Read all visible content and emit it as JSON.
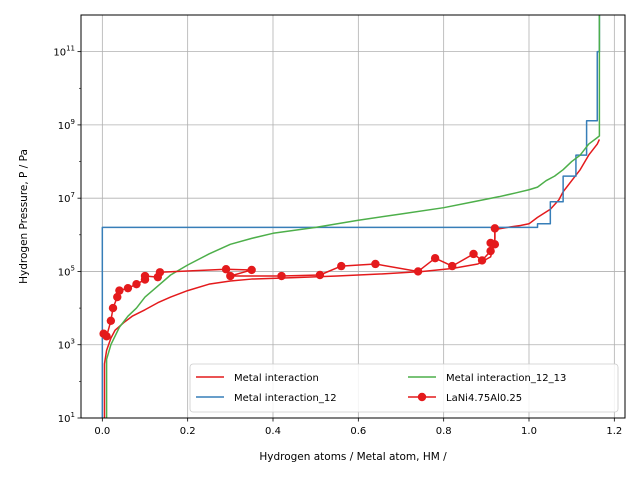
{
  "chart_data": {
    "type": "line",
    "title": "",
    "xlabel": "Hydrogen atoms / Metal atom, HM /",
    "ylabel": "Hydrogen Pressure, P / Pa",
    "y_scale": "log",
    "xlim": [
      -0.05,
      1.225
    ],
    "ylim": [
      10,
      1000000000000.0
    ],
    "grid": true,
    "legend_position": "lower-right",
    "x_ticks": [
      {
        "value": 0.0,
        "label": "0.0"
      },
      {
        "value": 0.2,
        "label": "0.2"
      },
      {
        "value": 0.4,
        "label": "0.4"
      },
      {
        "value": 0.6,
        "label": "0.6"
      },
      {
        "value": 0.8,
        "label": "0.8"
      },
      {
        "value": 1.0,
        "label": "1.0"
      },
      {
        "value": 1.2,
        "label": "1.2"
      }
    ],
    "y_ticks": [
      {
        "value": 10,
        "base": "10",
        "exp": "1"
      },
      {
        "value": 1000,
        "base": "10",
        "exp": "3"
      },
      {
        "value": 100000,
        "base": "10",
        "exp": "5"
      },
      {
        "value": 10000000,
        "base": "10",
        "exp": "7"
      },
      {
        "value": 1000000000,
        "base": "10",
        "exp": "9"
      },
      {
        "value": 100000000000,
        "base": "10",
        "exp": "11"
      }
    ],
    "series": [
      {
        "name": "Metal interaction",
        "color": "#e41a1c",
        "marker": false,
        "points": [
          [
            0.005,
            10
          ],
          [
            0.005,
            300
          ],
          [
            0.01,
            700
          ],
          [
            0.02,
            1500
          ],
          [
            0.03,
            2500
          ],
          [
            0.05,
            4000
          ],
          [
            0.07,
            6000
          ],
          [
            0.1,
            9000
          ],
          [
            0.13,
            14000
          ],
          [
            0.16,
            20000
          ],
          [
            0.2,
            30000
          ],
          [
            0.25,
            45000
          ],
          [
            0.3,
            55000
          ],
          [
            0.35,
            62000
          ],
          [
            0.45,
            68000
          ],
          [
            0.55,
            75000
          ],
          [
            0.65,
            85000
          ],
          [
            0.75,
            100000
          ],
          [
            0.82,
            120000
          ],
          [
            0.88,
            160000
          ],
          [
            0.91,
            250000
          ],
          [
            0.915,
            400000
          ],
          [
            0.92,
            800000
          ],
          [
            0.92,
            1400000
          ],
          [
            0.95,
            1600000
          ],
          [
            0.98,
            1800000
          ],
          [
            1.0,
            2000000
          ],
          [
            1.02,
            3000000
          ],
          [
            1.05,
            5000000
          ],
          [
            1.07,
            9000000
          ],
          [
            1.08,
            15000000
          ],
          [
            1.1,
            30000000
          ],
          [
            1.12,
            60000000
          ],
          [
            1.14,
            150000000
          ],
          [
            1.16,
            300000000
          ],
          [
            1.165,
            400000000
          ]
        ]
      },
      {
        "name": "Metal interaction_12",
        "color": "#377eb8",
        "marker": false,
        "points": [
          [
            0.0,
            10
          ],
          [
            0.0,
            1600000
          ],
          [
            1.02,
            1600000
          ],
          [
            1.02,
            2000000
          ],
          [
            1.05,
            2000000
          ],
          [
            1.05,
            8000000
          ],
          [
            1.08,
            8000000
          ],
          [
            1.08,
            40000000
          ],
          [
            1.11,
            40000000
          ],
          [
            1.11,
            150000000
          ],
          [
            1.135,
            150000000
          ],
          [
            1.135,
            1300000000
          ],
          [
            1.16,
            1300000000
          ],
          [
            1.16,
            100000000000
          ],
          [
            1.165,
            100000000000
          ],
          [
            1.165,
            1000000000000
          ]
        ]
      },
      {
        "name": "Metal interaction_12_13",
        "color": "#4daf4a",
        "marker": false,
        "points": [
          [
            0.01,
            10
          ],
          [
            0.01,
            400
          ],
          [
            0.02,
            1000
          ],
          [
            0.04,
            3000
          ],
          [
            0.06,
            6000
          ],
          [
            0.08,
            10000
          ],
          [
            0.1,
            20000
          ],
          [
            0.13,
            40000
          ],
          [
            0.16,
            80000
          ],
          [
            0.2,
            150000
          ],
          [
            0.25,
            300000
          ],
          [
            0.3,
            550000
          ],
          [
            0.35,
            800000
          ],
          [
            0.4,
            1100000
          ],
          [
            0.5,
            1600000
          ],
          [
            0.6,
            2500000
          ],
          [
            0.7,
            3700000
          ],
          [
            0.8,
            5500000
          ],
          [
            0.87,
            8000000
          ],
          [
            0.93,
            11000000
          ],
          [
            0.97,
            14000000
          ],
          [
            1.0,
            17000000
          ],
          [
            1.02,
            20000000
          ],
          [
            1.04,
            30000000
          ],
          [
            1.06,
            40000000
          ],
          [
            1.08,
            60000000
          ],
          [
            1.1,
            100000000
          ],
          [
            1.12,
            150000000
          ],
          [
            1.14,
            300000000
          ],
          [
            1.16,
            450000000
          ],
          [
            1.165,
            500000000
          ],
          [
            1.165,
            1000000000000
          ]
        ]
      },
      {
        "name": "LaNi4.75Al0.25",
        "color": "#e41a1c",
        "marker": true,
        "points": [
          [
            0.003,
            2000
          ],
          [
            0.01,
            1700
          ],
          [
            0.02,
            4500
          ],
          [
            0.025,
            10000
          ],
          [
            0.035,
            20000
          ],
          [
            0.04,
            30000
          ],
          [
            0.06,
            35000
          ],
          [
            0.08,
            45000
          ],
          [
            0.1,
            60000
          ],
          [
            0.1,
            75000
          ],
          [
            0.13,
            70000
          ],
          [
            0.135,
            95000
          ],
          [
            0.29,
            115000
          ],
          [
            0.35,
            110000
          ],
          [
            0.3,
            75000
          ],
          [
            0.42,
            75000
          ],
          [
            0.51,
            80000
          ],
          [
            0.56,
            140000
          ],
          [
            0.64,
            160000
          ],
          [
            0.74,
            100000
          ],
          [
            0.78,
            230000
          ],
          [
            0.82,
            140000
          ],
          [
            0.87,
            300000
          ],
          [
            0.89,
            200000
          ],
          [
            0.91,
            360000
          ],
          [
            0.91,
            600000
          ],
          [
            0.92,
            550000
          ],
          [
            0.92,
            1500000
          ]
        ]
      }
    ]
  }
}
